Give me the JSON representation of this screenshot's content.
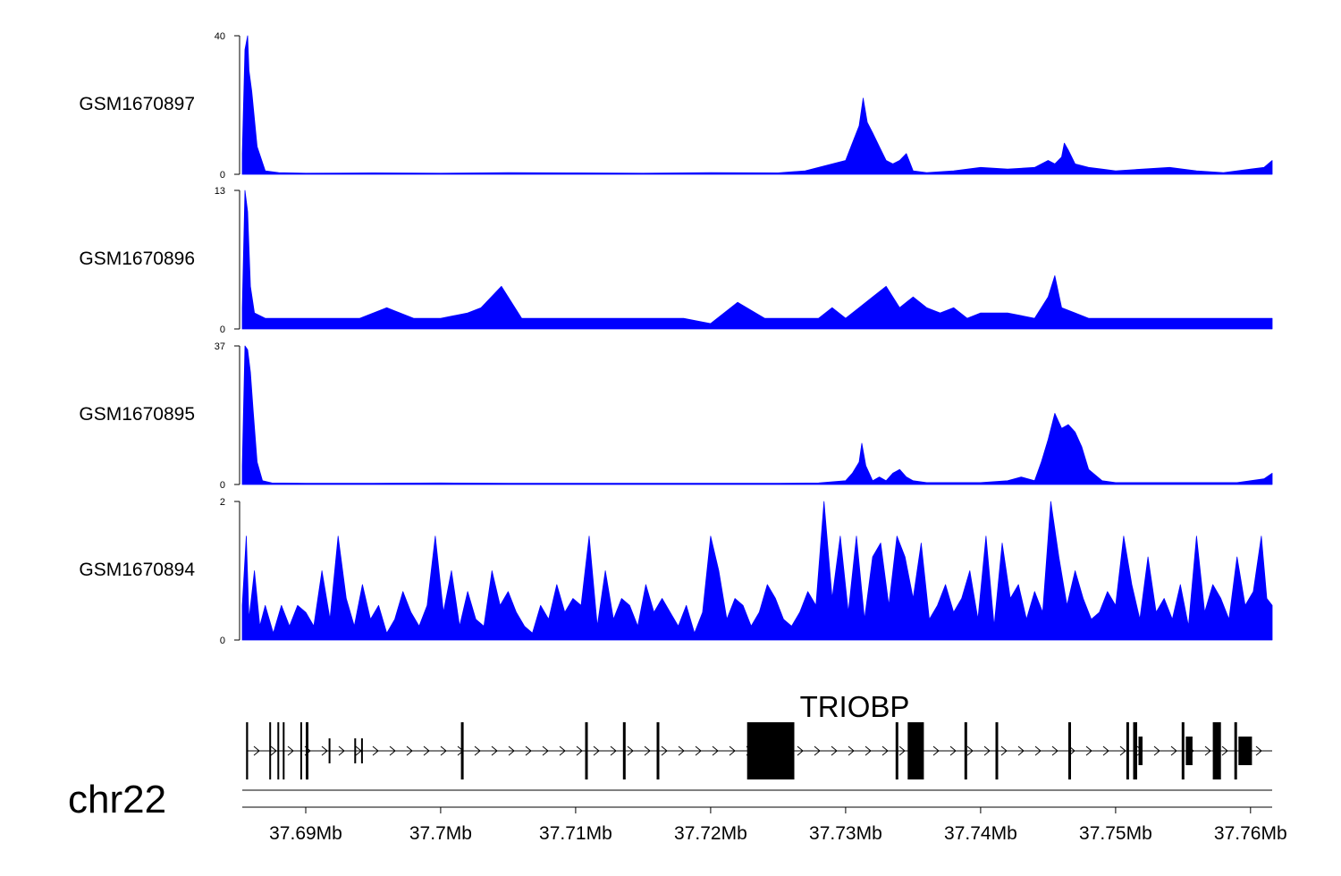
{
  "chart_data": {
    "type": "area",
    "colors": {
      "signal": "#0000ff",
      "axis": "#000000",
      "gene": "#000000"
    },
    "chromosome": "chr22",
    "x_ticks": [
      {
        "value": 37.69,
        "label": "37.69Mb"
      },
      {
        "value": 37.7,
        "label": "37.7Mb"
      },
      {
        "value": 37.71,
        "label": "37.71Mb"
      },
      {
        "value": 37.72,
        "label": "37.72Mb"
      },
      {
        "value": 37.73,
        "label": "37.73Mb"
      },
      {
        "value": 37.74,
        "label": "37.74Mb"
      },
      {
        "value": 37.75,
        "label": "37.75Mb"
      },
      {
        "value": 37.76,
        "label": "37.76Mb"
      }
    ],
    "xlim": [
      37.6853,
      37.7616
    ],
    "tracks": [
      {
        "name": "GSM1670897",
        "ylim": [
          0,
          40
        ],
        "ytick_labels": [
          "40",
          "0"
        ],
        "x": [
          37.6853,
          37.6855,
          37.6857,
          37.6858,
          37.686,
          37.6864,
          37.687,
          37.688,
          37.69,
          37.695,
          37.7,
          37.705,
          37.71,
          37.715,
          37.72,
          37.725,
          37.727,
          37.728,
          37.729,
          37.73,
          37.7305,
          37.731,
          37.7313,
          37.7316,
          37.732,
          37.7325,
          37.733,
          37.7335,
          37.734,
          37.7345,
          37.735,
          37.736,
          37.738,
          37.74,
          37.742,
          37.744,
          37.745,
          37.7455,
          37.746,
          37.7462,
          37.7465,
          37.747,
          37.748,
          37.749,
          37.75,
          37.752,
          37.754,
          37.756,
          37.758,
          37.76,
          37.761,
          37.7616
        ],
        "y": [
          6,
          36,
          40,
          30,
          24,
          8,
          1,
          0.5,
          0.3,
          0.4,
          0.3,
          0.5,
          0.4,
          0.3,
          0.5,
          0.4,
          1,
          2,
          3,
          4,
          9,
          14,
          22,
          15,
          12,
          8,
          4,
          3,
          4,
          6,
          1,
          0.5,
          1,
          2,
          1.5,
          2,
          4,
          3,
          5,
          9,
          7,
          3,
          2,
          1.5,
          1,
          1.5,
          2,
          1,
          0.5,
          1.5,
          2,
          4
        ]
      },
      {
        "name": "GSM1670896",
        "ylim": [
          0,
          13
        ],
        "ytick_labels": [
          "13",
          "0"
        ],
        "x": [
          37.6853,
          37.6855,
          37.6857,
          37.6859,
          37.6862,
          37.687,
          37.688,
          37.69,
          37.692,
          37.694,
          37.696,
          37.698,
          37.7,
          37.702,
          37.703,
          37.7045,
          37.706,
          37.708,
          37.71,
          37.712,
          37.714,
          37.716,
          37.718,
          37.72,
          37.722,
          37.724,
          37.726,
          37.728,
          37.729,
          37.73,
          37.731,
          37.732,
          37.733,
          37.734,
          37.735,
          37.736,
          37.737,
          37.738,
          37.739,
          37.74,
          37.742,
          37.744,
          37.745,
          37.7455,
          37.746,
          37.747,
          37.748,
          37.75,
          37.752,
          37.754,
          37.756,
          37.758,
          37.76,
          37.7616
        ],
        "y": [
          2,
          13,
          11,
          4,
          1.5,
          1,
          1,
          1,
          1,
          1,
          2,
          1,
          1,
          1.5,
          2,
          4,
          1,
          1,
          1,
          1,
          1,
          1,
          1,
          0.5,
          2.5,
          1,
          1,
          1,
          2,
          1,
          2,
          3,
          4,
          2,
          3,
          2,
          1.5,
          2,
          1,
          1.5,
          1.5,
          1,
          3,
          5,
          2,
          1.5,
          1,
          1,
          1,
          1,
          1,
          1,
          1,
          1
        ]
      },
      {
        "name": "GSM1670895",
        "ylim": [
          0,
          37
        ],
        "ytick_labels": [
          "37",
          "0"
        ],
        "x": [
          37.6853,
          37.6855,
          37.6857,
          37.6859,
          37.6861,
          37.6864,
          37.6868,
          37.6875,
          37.69,
          37.695,
          37.7,
          37.705,
          37.71,
          37.715,
          37.72,
          37.725,
          37.728,
          37.73,
          37.7305,
          37.731,
          37.7312,
          37.7315,
          37.732,
          37.7325,
          37.733,
          37.7335,
          37.734,
          37.7345,
          37.735,
          37.736,
          37.738,
          37.74,
          37.742,
          37.743,
          37.744,
          37.7445,
          37.745,
          37.7455,
          37.746,
          37.7465,
          37.747,
          37.7475,
          37.748,
          37.749,
          37.75,
          37.755,
          37.759,
          37.76,
          37.761,
          37.7616
        ],
        "y": [
          5,
          37,
          36,
          30,
          20,
          6,
          1,
          0.4,
          0.3,
          0.3,
          0.4,
          0.3,
          0.3,
          0.3,
          0.3,
          0.3,
          0.4,
          1,
          3,
          6,
          11,
          5,
          1,
          2,
          1,
          3,
          4,
          2,
          1,
          0.5,
          0.5,
          0.5,
          1,
          2,
          1,
          6,
          12,
          19,
          15,
          16,
          14,
          10,
          4,
          1,
          0.5,
          0.5,
          0.5,
          1,
          1.5,
          3
        ]
      },
      {
        "name": "GSM1670894",
        "ylim": [
          0,
          2
        ],
        "ytick_labels": [
          "2",
          "0"
        ],
        "x": [
          37.6853,
          37.6856,
          37.6858,
          37.6862,
          37.6866,
          37.687,
          37.6876,
          37.6882,
          37.6888,
          37.6894,
          37.69,
          37.6906,
          37.6912,
          37.6918,
          37.6924,
          37.693,
          37.6936,
          37.6942,
          37.6948,
          37.6954,
          37.696,
          37.6966,
          37.6972,
          37.6978,
          37.6984,
          37.699,
          37.6996,
          37.7002,
          37.7008,
          37.7014,
          37.702,
          37.7026,
          37.7032,
          37.7038,
          37.7044,
          37.705,
          37.7056,
          37.7062,
          37.7068,
          37.7074,
          37.708,
          37.7086,
          37.7092,
          37.7098,
          37.7104,
          37.711,
          37.7116,
          37.7122,
          37.7128,
          37.7134,
          37.714,
          37.7146,
          37.7152,
          37.7158,
          37.7164,
          37.717,
          37.7176,
          37.7182,
          37.7188,
          37.7194,
          37.72,
          37.7206,
          37.7212,
          37.7218,
          37.7224,
          37.723,
          37.7236,
          37.7242,
          37.7248,
          37.7254,
          37.726,
          37.7266,
          37.7272,
          37.7278,
          37.7284,
          37.729,
          37.7296,
          37.7302,
          37.7308,
          37.7314,
          37.732,
          37.7326,
          37.7332,
          37.7338,
          37.7344,
          37.735,
          37.7356,
          37.7362,
          37.7368,
          37.7374,
          37.738,
          37.7386,
          37.7392,
          37.7398,
          37.7404,
          37.741,
          37.7416,
          37.7422,
          37.7428,
          37.7434,
          37.744,
          37.7446,
          37.7452,
          37.7458,
          37.7464,
          37.747,
          37.7476,
          37.7482,
          37.7488,
          37.7494,
          37.75,
          37.7506,
          37.7512,
          37.7518,
          37.7524,
          37.753,
          37.7536,
          37.7542,
          37.7548,
          37.7554,
          37.756,
          37.7566,
          37.7572,
          37.7578,
          37.7584,
          37.759,
          37.7596,
          37.7602,
          37.7608,
          37.7612,
          37.7616
        ],
        "y": [
          0.5,
          1.5,
          0.3,
          1,
          0.2,
          0.5,
          0.1,
          0.5,
          0.2,
          0.5,
          0.4,
          0.2,
          1,
          0.3,
          1.5,
          0.6,
          0.2,
          0.8,
          0.3,
          0.5,
          0.1,
          0.3,
          0.7,
          0.4,
          0.2,
          0.5,
          1.5,
          0.4,
          1,
          0.2,
          0.7,
          0.3,
          0.2,
          1,
          0.5,
          0.7,
          0.4,
          0.2,
          0.1,
          0.5,
          0.3,
          0.8,
          0.4,
          0.6,
          0.5,
          1.5,
          0.2,
          1,
          0.3,
          0.6,
          0.5,
          0.2,
          0.8,
          0.4,
          0.6,
          0.4,
          0.2,
          0.5,
          0.1,
          0.4,
          1.5,
          1,
          0.3,
          0.6,
          0.5,
          0.2,
          0.4,
          0.8,
          0.6,
          0.3,
          0.2,
          0.4,
          0.7,
          0.5,
          2,
          0.6,
          1.5,
          0.4,
          1.5,
          0.3,
          1.2,
          1.4,
          0.5,
          1.5,
          1.2,
          0.6,
          1.4,
          0.3,
          0.5,
          0.8,
          0.4,
          0.6,
          1,
          0.3,
          1.5,
          0.2,
          1.4,
          0.6,
          0.8,
          0.3,
          0.7,
          0.4,
          2,
          1.2,
          0.5,
          1,
          0.6,
          0.3,
          0.4,
          0.7,
          0.5,
          1.5,
          0.8,
          0.3,
          1.2,
          0.4,
          0.6,
          0.3,
          0.8,
          0.2,
          1.5,
          0.4,
          0.8,
          0.6,
          0.3,
          1.2,
          0.5,
          0.7,
          1.5,
          0.6,
          0.5
        ]
      }
    ],
    "gene": {
      "name": "TRIOBP",
      "strand": "+",
      "start": 37.6856,
      "end": 37.7616,
      "exons": [
        {
          "start": 37.6856,
          "end": 37.6857,
          "size": "small"
        },
        {
          "start": 37.6873,
          "end": 37.6874,
          "size": "small"
        },
        {
          "start": 37.6879,
          "end": 37.688,
          "size": "small"
        },
        {
          "start": 37.6883,
          "end": 37.6884,
          "size": "small"
        },
        {
          "start": 37.6896,
          "end": 37.6897,
          "size": "small"
        },
        {
          "start": 37.69,
          "end": 37.6902,
          "size": "small"
        },
        {
          "start": 37.6917,
          "end": 37.6918,
          "size": "tiny"
        },
        {
          "start": 37.6936,
          "end": 37.6937,
          "size": "tiny"
        },
        {
          "start": 37.6941,
          "end": 37.6942,
          "size": "tiny"
        },
        {
          "start": 37.7015,
          "end": 37.7017,
          "size": "small"
        },
        {
          "start": 37.7107,
          "end": 37.7109,
          "size": "small"
        },
        {
          "start": 37.7135,
          "end": 37.7137,
          "size": "small"
        },
        {
          "start": 37.716,
          "end": 37.7162,
          "size": "small"
        },
        {
          "start": 37.7227,
          "end": 37.7262,
          "size": "big"
        },
        {
          "start": 37.7337,
          "end": 37.7339,
          "size": "small"
        },
        {
          "start": 37.7346,
          "end": 37.7358,
          "size": "big"
        },
        {
          "start": 37.7388,
          "end": 37.739,
          "size": "small"
        },
        {
          "start": 37.7411,
          "end": 37.7413,
          "size": "small"
        },
        {
          "start": 37.7465,
          "end": 37.7467,
          "size": "small"
        },
        {
          "start": 37.7508,
          "end": 37.751,
          "size": "small"
        },
        {
          "start": 37.7513,
          "end": 37.7516,
          "size": "small"
        },
        {
          "start": 37.7517,
          "end": 37.752,
          "size": "mid"
        },
        {
          "start": 37.7549,
          "end": 37.7551,
          "size": "small"
        },
        {
          "start": 37.7552,
          "end": 37.7557,
          "size": "mid"
        },
        {
          "start": 37.7572,
          "end": 37.7578,
          "size": "big"
        },
        {
          "start": 37.7588,
          "end": 37.759,
          "size": "small"
        },
        {
          "start": 37.7591,
          "end": 37.7601,
          "size": "mid"
        }
      ]
    }
  }
}
